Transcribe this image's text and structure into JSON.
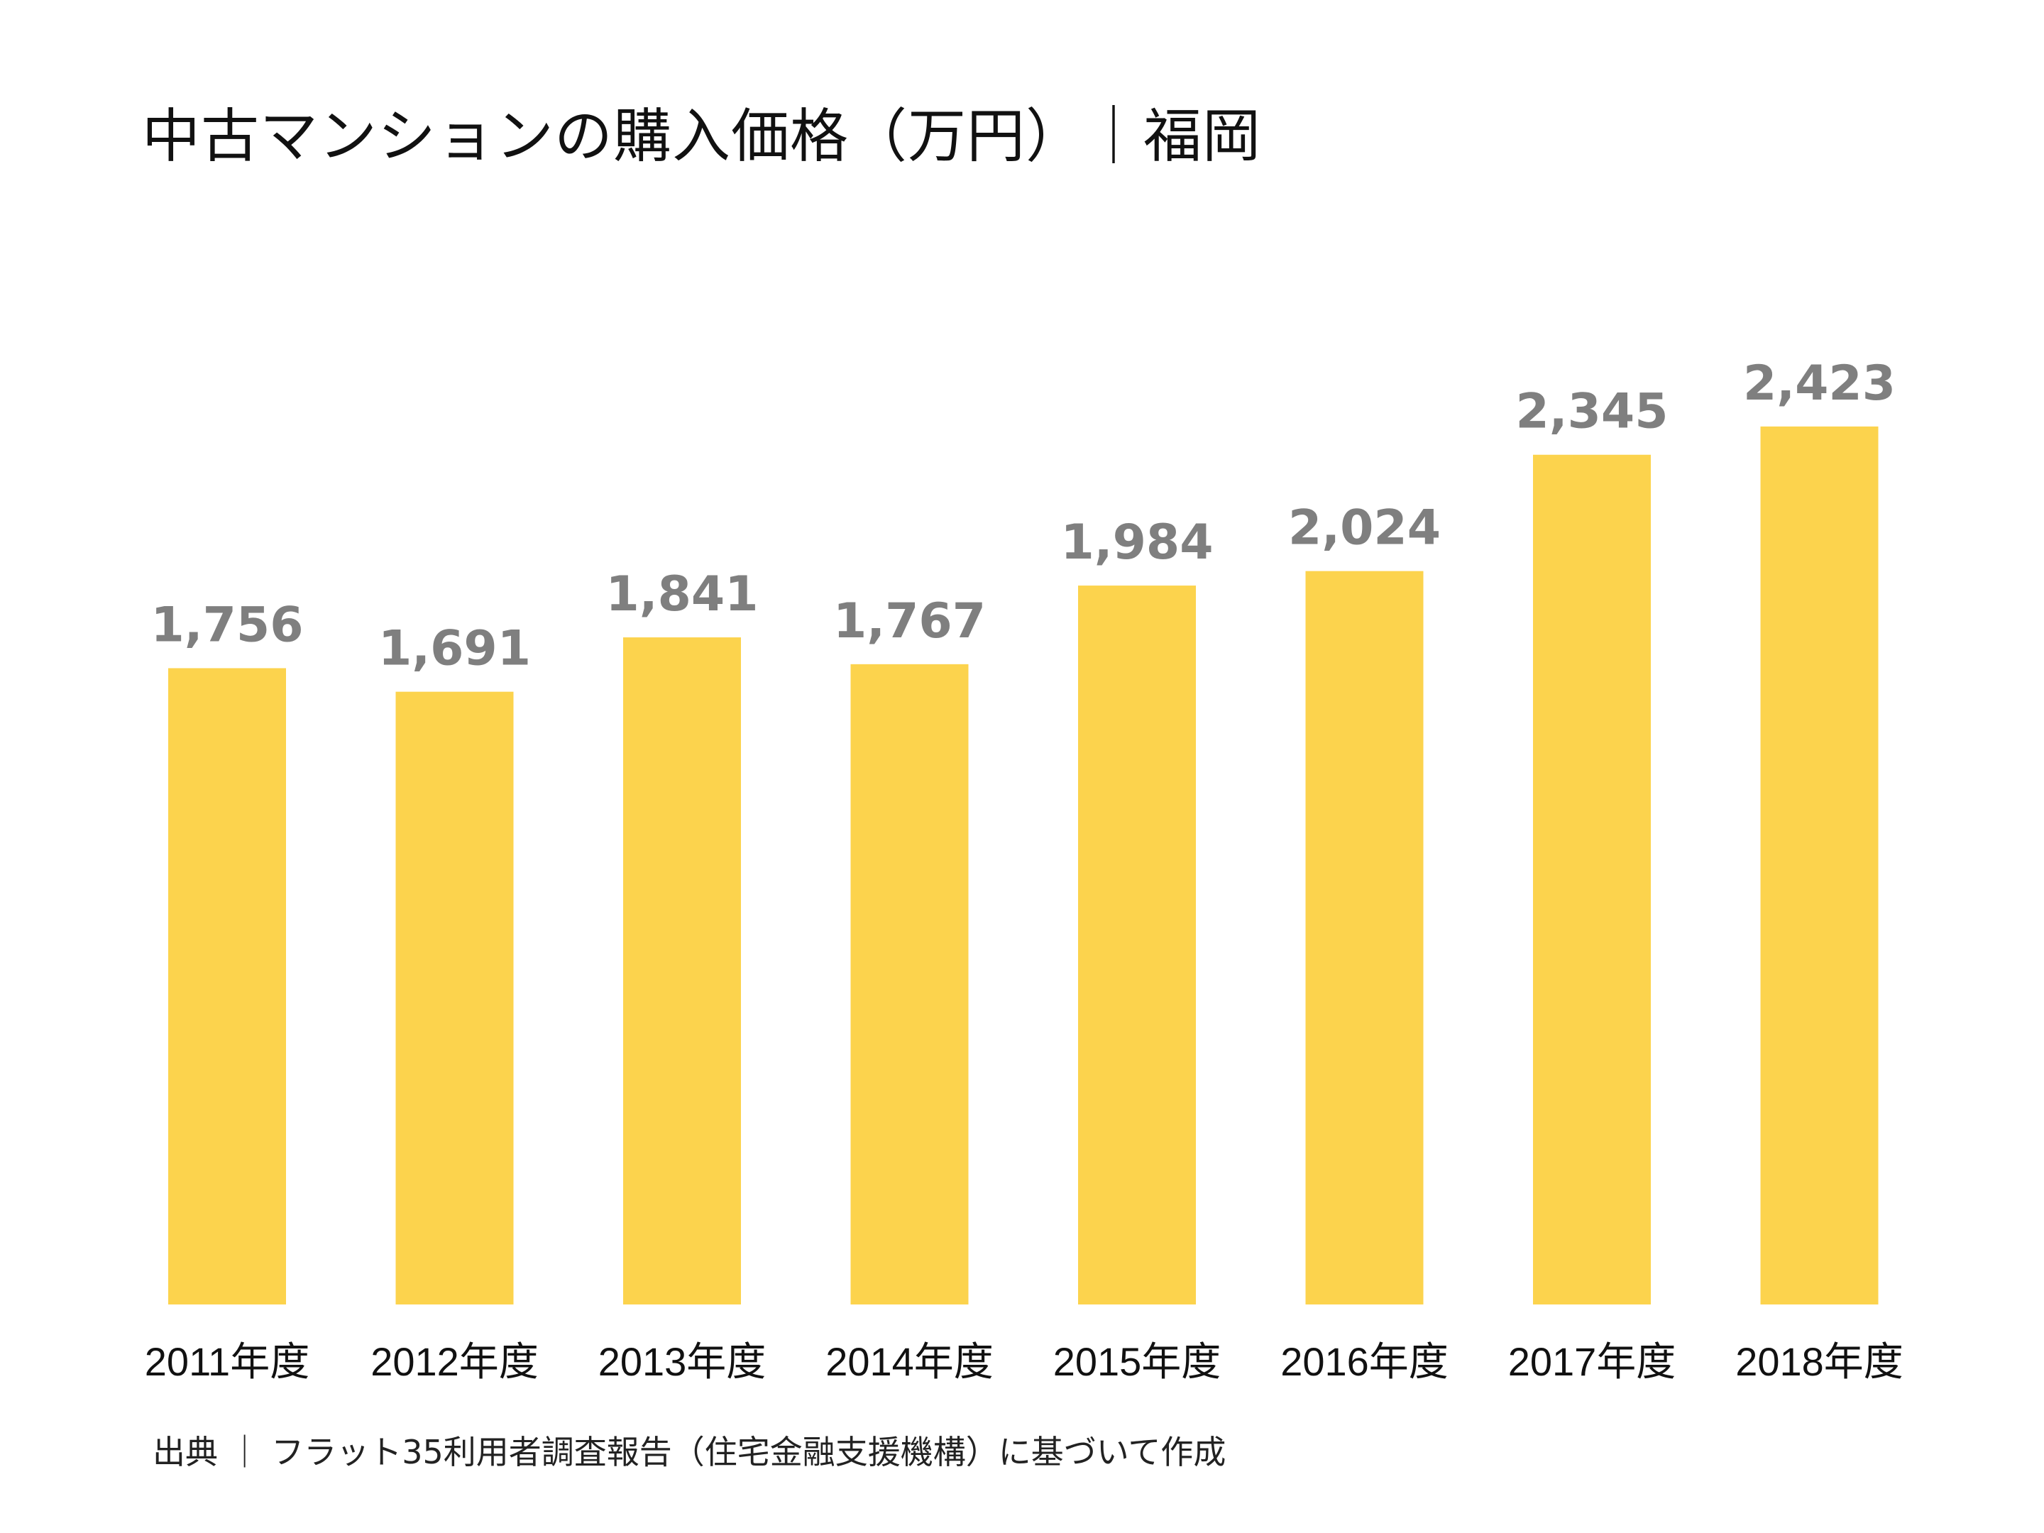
{
  "title": "中古マンションの購入価格（万円）｜福岡",
  "source": "出典 ｜ フラット35利用者調査報告（住宅金融支援機構）に基づいて作成",
  "colors": {
    "bar": "#fcd34d",
    "value_label": "#7f7f7f",
    "category_label": "#111111",
    "title": "#111111"
  },
  "chart_data": {
    "type": "bar",
    "title": "中古マンションの購入価格（万円）｜福岡",
    "categories": [
      "2011年度",
      "2012年度",
      "2013年度",
      "2014年度",
      "2015年度",
      "2016年度",
      "2017年度",
      "2018年度"
    ],
    "values": [
      1756,
      1691,
      1841,
      1767,
      1984,
      2024,
      2345,
      2423
    ],
    "value_labels": [
      "1,756",
      "1,691",
      "1,841",
      "1,767",
      "1,984",
      "2,024",
      "2,345",
      "2,423"
    ],
    "xlabel": "",
    "ylabel": "",
    "ylim": [
      0,
      3600
    ],
    "grid": false,
    "legend": "none"
  }
}
